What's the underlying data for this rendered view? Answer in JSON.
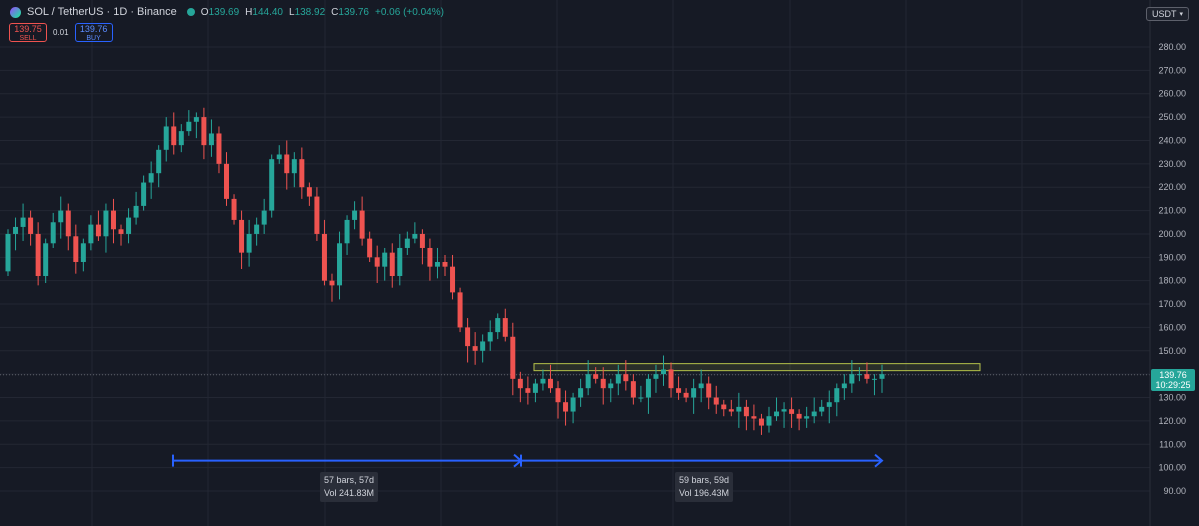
{
  "header": {
    "symbol": "SOL / TetherUS · 1D · Binance",
    "open_label": "O",
    "open": "139.69",
    "high_label": "H",
    "high": "144.40",
    "low_label": "L",
    "low": "138.92",
    "close_label": "C",
    "close": "139.76",
    "change": "+0.06 (+0.04%)"
  },
  "trade": {
    "sell_price": "139.75",
    "sell_label": "SELL",
    "spread": "0.01",
    "buy_price": "139.76",
    "buy_label": "BUY"
  },
  "currency": "USDT",
  "last_price_label": {
    "price": "139.76",
    "countdown": "10:29:25"
  },
  "measurements": [
    {
      "bars": "57 bars, 57d",
      "volume": "Vol 241.83M"
    },
    {
      "bars": "59 bars, 59d",
      "volume": "Vol 196.43M"
    }
  ],
  "colors": {
    "up": "#26a69a",
    "down": "#ef5350",
    "background": "#161a25",
    "measure": "#2962ff",
    "zone": "#b5c24a"
  },
  "chart_data": {
    "type": "candlestick",
    "ylim": [
      85,
      290
    ],
    "y_ticks": [
      "280.00",
      "270.00",
      "260.00",
      "250.00",
      "240.00",
      "230.00",
      "220.00",
      "210.00",
      "200.00",
      "190.00",
      "180.00",
      "170.00",
      "160.00",
      "150.00",
      "140.00",
      "130.00",
      "120.00",
      "110.00",
      "100.00",
      "90.00"
    ],
    "close_series": [
      200,
      203,
      207,
      200,
      182,
      196,
      205,
      210,
      199,
      188,
      196,
      204,
      199,
      210,
      202,
      200,
      207,
      212,
      222,
      226,
      236,
      246,
      238,
      244,
      248,
      250,
      238,
      243,
      230,
      215,
      206,
      192,
      200,
      204,
      210,
      232,
      234,
      226,
      232,
      220,
      216,
      200,
      180,
      178,
      196,
      206,
      210,
      198,
      190,
      186,
      192,
      182,
      194,
      198,
      200,
      194,
      186,
      188,
      186,
      175,
      160,
      152,
      150,
      154,
      158,
      164,
      156,
      138,
      134,
      132,
      136,
      138,
      134,
      128,
      124,
      130,
      134,
      140,
      138,
      134,
      136,
      140,
      137,
      130,
      130,
      138,
      140,
      142,
      134,
      132,
      130,
      134,
      136,
      130,
      127,
      125,
      124,
      126,
      122,
      121,
      118,
      122,
      124,
      125,
      123,
      121,
      122,
      124,
      126,
      128,
      134,
      136,
      140,
      140,
      138,
      138,
      140
    ]
  },
  "resistance_zone": {
    "top": 144.5,
    "bottom": 141.5,
    "label": ""
  }
}
